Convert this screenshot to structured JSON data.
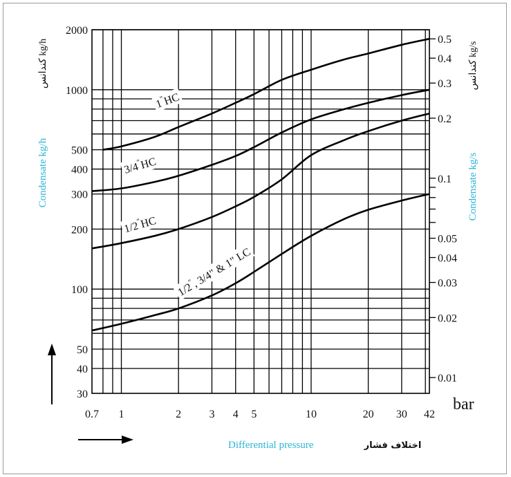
{
  "chart_data": {
    "type": "line",
    "xscale": "log",
    "yscale": "log",
    "grid": true,
    "xlim": [
      0.7,
      42
    ],
    "ylim_left": [
      30,
      2000
    ],
    "ylim_right": [
      0.00833,
      0.556
    ],
    "x_ticks": [
      0.7,
      1,
      2,
      3,
      4,
      5,
      10,
      20,
      30,
      42
    ],
    "x_tick_labels": [
      "0.7",
      "1",
      "2",
      "3",
      "4",
      "5",
      "10",
      "20",
      "30",
      "42"
    ],
    "y_left_ticks": [
      30,
      40,
      50,
      100,
      200,
      300,
      400,
      500,
      1000,
      2000
    ],
    "y_left_tick_labels": [
      "30",
      "40",
      "50",
      "100",
      "200",
      "300",
      "400",
      "500",
      "1000",
      "2000"
    ],
    "y_right_ticks": [
      0.01,
      0.02,
      0.03,
      0.04,
      0.05,
      0.1,
      0.2,
      0.3,
      0.4,
      0.5
    ],
    "y_right_tick_labels": [
      "0.01",
      "0.02",
      "0.03",
      "0.04",
      "0.05",
      "0.1",
      "0.2",
      "0.3",
      "0.4",
      "0.5"
    ],
    "x_unit": "bar",
    "xlabel_en": "Differential pressure",
    "xlabel_fa": "اختلاف فشار",
    "ylabel_left_en": "Condensate kg/h",
    "ylabel_left_fa": "کندانس kg/h",
    "ylabel_right_en": "Condensate kg/s",
    "ylabel_right_fa": "کندانس kg/s",
    "series": [
      {
        "name": "1\" HC",
        "x": [
          0.8,
          1,
          1.5,
          2,
          3,
          4,
          5,
          7,
          10,
          15,
          20,
          30,
          42
        ],
        "values": [
          500,
          520,
          580,
          650,
          760,
          860,
          950,
          1120,
          1260,
          1420,
          1520,
          1680,
          1800
        ]
      },
      {
        "name": "3/4\" HC",
        "x": [
          0.7,
          1,
          1.5,
          2,
          3,
          4,
          5,
          7,
          10,
          15,
          20,
          30,
          42
        ],
        "values": [
          310,
          320,
          345,
          370,
          420,
          465,
          515,
          610,
          710,
          800,
          860,
          940,
          1000
        ]
      },
      {
        "name": "1/2\" HC",
        "x": [
          0.7,
          1,
          1.5,
          2,
          3,
          4,
          5,
          7,
          10,
          15,
          20,
          30,
          42
        ],
        "values": [
          160,
          170,
          185,
          200,
          230,
          260,
          290,
          355,
          470,
          560,
          620,
          700,
          760
        ]
      },
      {
        "name": "1/2\", 3/4\" & 1\" LC",
        "x": [
          0.7,
          1,
          1.5,
          2,
          3,
          4,
          5,
          7,
          10,
          15,
          20,
          30,
          42
        ],
        "values": [
          62,
          67,
          74,
          80,
          93,
          107,
          122,
          150,
          185,
          225,
          250,
          278,
          300
        ]
      }
    ],
    "curve_labels": [
      {
        "main": "1",
        "super": "\"",
        "rest": "HC",
        "x": 1.55,
        "y": 810,
        "angle": -20
      },
      {
        "main": "3/4",
        "super": "\"",
        "rest": "HC",
        "x": 1.05,
        "y": 380,
        "angle": -16
      },
      {
        "main": "1/2",
        "super": "\"",
        "rest": "HC",
        "x": 1.05,
        "y": 192,
        "angle": -16
      },
      {
        "main": "1/2",
        "super": "\"",
        "rest": ", 3/4\" & 1\" LC",
        "x": 2.05,
        "y": 92,
        "angle": -31
      }
    ]
  }
}
